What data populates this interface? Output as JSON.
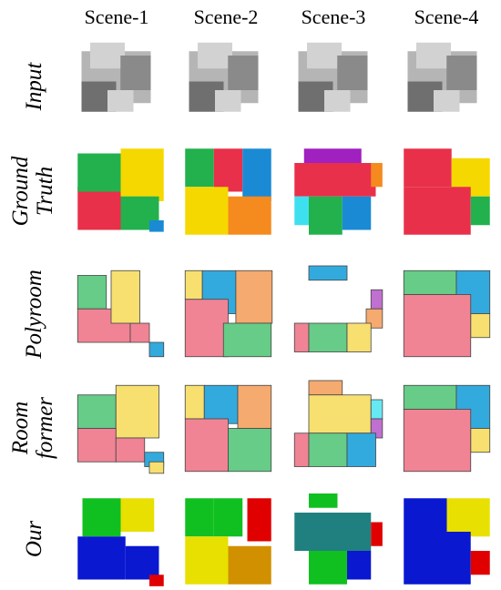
{
  "columns": [
    "Scene-1",
    "Scene-2",
    "Scene-3",
    "Scene-4"
  ],
  "rows": [
    {
      "label": [
        "Input"
      ]
    },
    {
      "label": [
        "Ground",
        "Truth"
      ]
    },
    {
      "label": [
        "Polyroom"
      ]
    },
    {
      "label": [
        "Room",
        "former"
      ]
    },
    {
      "label": [
        "Our"
      ]
    }
  ]
}
